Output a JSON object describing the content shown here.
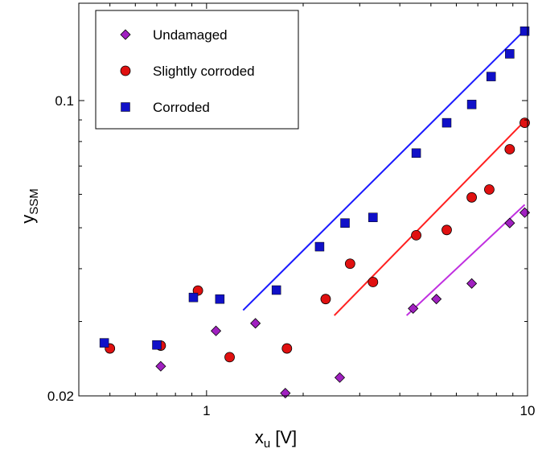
{
  "chart_data": {
    "type": "scatter",
    "x_scale": "log",
    "y_scale": "log",
    "xlim": [
      0.4,
      10
    ],
    "ylim": [
      0.02,
      0.17
    ],
    "xlabel_main": "x",
    "xlabel_sub": "u",
    "xlabel_unit": " [V]",
    "ylabel_main": "y",
    "ylabel_sub": "SSM",
    "x_ticks": [
      {
        "value": 1,
        "label": "1"
      },
      {
        "value": 10,
        "label": "10"
      }
    ],
    "y_ticks": [
      {
        "value": 0.02,
        "label": "0.02"
      },
      {
        "value": 0.1,
        "label": "0.1"
      }
    ],
    "legend_position": "top-left",
    "series": [
      {
        "name": "Undamaged",
        "marker": "diamond",
        "color": "#a020c0",
        "points": [
          [
            0.72,
            0.0235
          ],
          [
            1.07,
            0.0285
          ],
          [
            1.42,
            0.0297
          ],
          [
            1.76,
            0.0203
          ],
          [
            2.6,
            0.0221
          ],
          [
            4.4,
            0.0322
          ],
          [
            5.2,
            0.0339
          ],
          [
            6.7,
            0.0369
          ],
          [
            8.8,
            0.0513
          ],
          [
            9.8,
            0.0543
          ]
        ],
        "fit_line": {
          "color": "#c030e0",
          "x": [
            4.2,
            9.8
          ],
          "y": [
            0.031,
            0.0567
          ]
        }
      },
      {
        "name": "Slightly corroded",
        "marker": "circle",
        "color": "#e01010",
        "points": [
          [
            0.5,
            0.0259
          ],
          [
            0.72,
            0.0263
          ],
          [
            0.94,
            0.0355
          ],
          [
            1.18,
            0.0247
          ],
          [
            1.78,
            0.0259
          ],
          [
            2.35,
            0.0339
          ],
          [
            2.8,
            0.0411
          ],
          [
            3.3,
            0.0372
          ],
          [
            4.5,
            0.048
          ],
          [
            5.6,
            0.0494
          ],
          [
            6.7,
            0.059
          ],
          [
            7.6,
            0.0616
          ],
          [
            8.8,
            0.0767
          ],
          [
            9.8,
            0.0886
          ]
        ],
        "fit_line": {
          "color": "#ff2020",
          "x": [
            2.5,
            9.9
          ],
          "y": [
            0.031,
            0.0902
          ]
        }
      },
      {
        "name": "Corroded",
        "marker": "square",
        "color": "#1010c8",
        "points": [
          [
            0.48,
            0.0267
          ],
          [
            0.7,
            0.0264
          ],
          [
            0.91,
            0.0342
          ],
          [
            1.1,
            0.0339
          ],
          [
            1.65,
            0.0356
          ],
          [
            2.25,
            0.0451
          ],
          [
            2.7,
            0.0513
          ],
          [
            3.3,
            0.0529
          ],
          [
            4.5,
            0.0751
          ],
          [
            5.6,
            0.0886
          ],
          [
            6.7,
            0.0979
          ],
          [
            7.7,
            0.114
          ],
          [
            8.8,
            0.129
          ],
          [
            9.8,
            0.146
          ]
        ],
        "fit_line": {
          "color": "#1a1aff",
          "x": [
            1.3,
            9.9
          ],
          "y": [
            0.0319,
            0.148
          ]
        }
      }
    ]
  }
}
